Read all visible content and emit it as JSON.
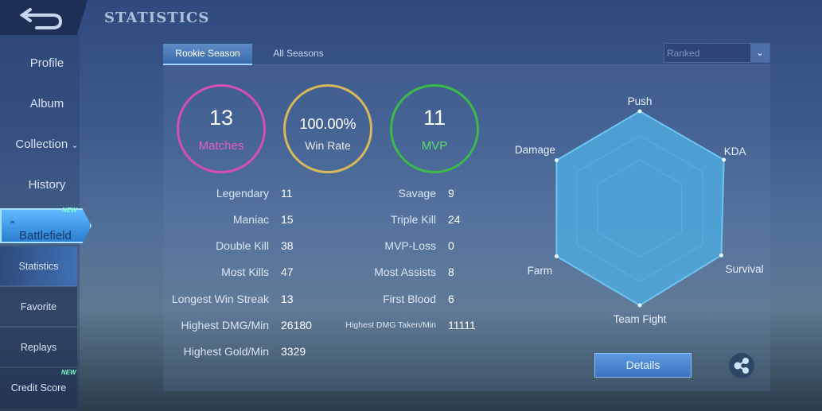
{
  "header": {
    "title": "STATISTICS",
    "back_icon": "back-arrow-icon"
  },
  "sidebar": {
    "items": [
      {
        "label": "Profile"
      },
      {
        "label": "Album"
      },
      {
        "label": "Collection"
      },
      {
        "label": "History"
      },
      {
        "label": "Battlefield",
        "badge": "NEW"
      }
    ],
    "sub_items": [
      {
        "label": "Statistics"
      },
      {
        "label": "Favorite"
      },
      {
        "label": "Replays"
      },
      {
        "label": "Credit Score",
        "badge": "NEW"
      }
    ]
  },
  "tabs": [
    {
      "label": "Rookie Season",
      "active": true
    },
    {
      "label": "All Seasons",
      "active": false
    }
  ],
  "mode_select": {
    "value": "Ranked"
  },
  "summary": [
    {
      "value": "13",
      "label": "Matches",
      "color": "#d44fb0"
    },
    {
      "value": "100.00%",
      "label": "Win Rate",
      "color": "#d8b85a"
    },
    {
      "value": "11",
      "label": "MVP",
      "color": "#3db84a"
    }
  ],
  "stats_left": [
    {
      "label": "Legendary",
      "value": "11"
    },
    {
      "label": "Maniac",
      "value": "15"
    },
    {
      "label": "Double Kill",
      "value": "38"
    },
    {
      "label": "Most Kills",
      "value": "47"
    },
    {
      "label": "Longest Win Streak",
      "value": "13"
    },
    {
      "label": "Highest DMG/Min",
      "value": "26180"
    },
    {
      "label": "Highest Gold/Min",
      "value": "3329"
    }
  ],
  "stats_right": [
    {
      "label": "Savage",
      "value": "9"
    },
    {
      "label": "Triple Kill",
      "value": "24"
    },
    {
      "label": "MVP-Loss",
      "value": "0"
    },
    {
      "label": "Most Assists",
      "value": "8"
    },
    {
      "label": "First Blood",
      "value": "6"
    },
    {
      "label": "Highest DMG Taken/Min",
      "value": "11111"
    }
  ],
  "chart_data": {
    "type": "radar",
    "axes": [
      "Push",
      "KDA",
      "Survival",
      "Team Fight",
      "Farm",
      "Damage"
    ],
    "values": [
      1.0,
      1.0,
      0.97,
      1.0,
      0.99,
      0.99
    ],
    "range": [
      0,
      1
    ],
    "color": "#4fa8dc"
  },
  "buttons": {
    "details": "Details",
    "share_icon": "share-icon"
  }
}
